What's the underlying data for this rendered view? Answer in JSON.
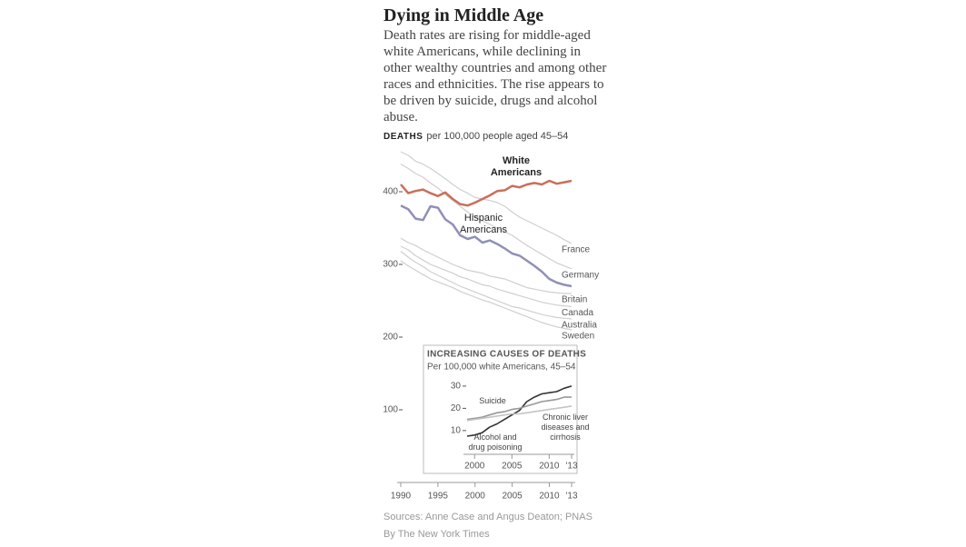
{
  "chart_data": [
    {
      "type": "line",
      "title": "Dying in Middle Age",
      "subtitle": "Death rates are rising for middle-aged white Americans, while declining in other wealthy countries and among other races and ethnicities. The rise appears to be driven by suicide, drugs and alcohol abuse.",
      "axis_title": "DEATHS",
      "axis_subtitle": "per 100,000 people aged 45–54",
      "x": [
        1990,
        1991,
        1992,
        1993,
        1994,
        1995,
        1996,
        1997,
        1998,
        1999,
        2000,
        2001,
        2002,
        2003,
        2004,
        2005,
        2006,
        2007,
        2008,
        2009,
        2010,
        2011,
        2012,
        2013
      ],
      "xlim": [
        1990,
        2013
      ],
      "xticks": [
        1990,
        1995,
        2000,
        2005,
        2010,
        {
          "value": 2013,
          "label": "'13"
        }
      ],
      "ylim": [
        0,
        460
      ],
      "yticks": [
        100,
        200,
        300,
        400
      ],
      "series": [
        {
          "name": "White Americans",
          "color": "#c8705a",
          "values": [
            410,
            398,
            401,
            403,
            398,
            394,
            399,
            390,
            383,
            381,
            385,
            390,
            395,
            401,
            402,
            408,
            406,
            410,
            412,
            410,
            415,
            411,
            413,
            415
          ]
        },
        {
          "name": "Hispanic Americans",
          "color": "#9090b8",
          "values": [
            381,
            376,
            363,
            361,
            380,
            378,
            362,
            355,
            340,
            335,
            338,
            330,
            333,
            328,
            322,
            315,
            312,
            305,
            298,
            290,
            280,
            275,
            272,
            270
          ]
        },
        {
          "name": "France",
          "color": "#cfcfcf",
          "values": [
            455,
            450,
            442,
            438,
            432,
            425,
            418,
            410,
            403,
            398,
            392,
            390,
            388,
            385,
            380,
            372,
            365,
            360,
            355,
            350,
            345,
            340,
            334,
            329
          ]
        },
        {
          "name": "Germany",
          "color": "#cfcfcf",
          "values": [
            438,
            432,
            425,
            420,
            412,
            405,
            396,
            388,
            380,
            372,
            366,
            360,
            355,
            350,
            345,
            340,
            333,
            326,
            320,
            314,
            308,
            302,
            298,
            294
          ]
        },
        {
          "name": "Britain",
          "color": "#cfcfcf",
          "values": [
            336,
            330,
            326,
            320,
            315,
            310,
            305,
            300,
            296,
            292,
            290,
            288,
            284,
            282,
            280,
            276,
            272,
            268,
            266,
            264,
            262,
            261,
            260,
            260
          ]
        },
        {
          "name": "Canada",
          "color": "#cfcfcf",
          "values": [
            325,
            320,
            312,
            306,
            300,
            296,
            292,
            288,
            283,
            280,
            276,
            272,
            270,
            266,
            263,
            260,
            257,
            254,
            251,
            248,
            246,
            244,
            243,
            242
          ]
        },
        {
          "name": "Australia",
          "color": "#cfcfcf",
          "values": [
            318,
            310,
            303,
            297,
            290,
            285,
            280,
            275,
            270,
            266,
            262,
            258,
            254,
            250,
            246,
            242,
            240,
            237,
            234,
            231,
            229,
            227,
            226,
            225
          ]
        },
        {
          "name": "Sweden",
          "color": "#cfcfcf",
          "values": [
            305,
            298,
            292,
            286,
            280,
            276,
            272,
            268,
            263,
            259,
            255,
            251,
            248,
            244,
            240,
            236,
            232,
            228,
            224,
            220,
            217,
            214,
            212,
            210
          ]
        }
      ],
      "source": "Sources: Anne Case and Angus Deaton; PNAS",
      "credit": "By The New York Times"
    },
    {
      "type": "line",
      "title": "INCREASING CAUSES OF DEATHS",
      "subtitle": "Per 100,000 white Americans, 45–54",
      "x": [
        1999,
        2000,
        2001,
        2002,
        2003,
        2004,
        2005,
        2006,
        2007,
        2008,
        2009,
        2010,
        2011,
        2012,
        2013
      ],
      "xlim": [
        1999,
        2013
      ],
      "xticks": [
        2000,
        2005,
        2010,
        {
          "value": 2013,
          "label": "'13"
        }
      ],
      "ylim": [
        3,
        32
      ],
      "yticks": [
        10,
        20,
        30
      ],
      "series": [
        {
          "name": "Alcohol and drug poisoning",
          "color": "#333333",
          "values": [
            7.5,
            8,
            9,
            11.5,
            13,
            15,
            17,
            19,
            23,
            25,
            26.5,
            27,
            27.5,
            29,
            30
          ]
        },
        {
          "name": "Suicide",
          "color": "#999999",
          "values": [
            15,
            15.5,
            16,
            17,
            18,
            18.5,
            19.5,
            20,
            21,
            22,
            23,
            23.5,
            24,
            25,
            25
          ]
        },
        {
          "name": "Chronic liver diseases and cirrhosis",
          "color": "#c4c4c4",
          "values": [
            14.5,
            15,
            15.5,
            16,
            16.5,
            17,
            17.5,
            17.5,
            18,
            18.5,
            19,
            19.5,
            20,
            20.5,
            21
          ]
        }
      ]
    }
  ]
}
